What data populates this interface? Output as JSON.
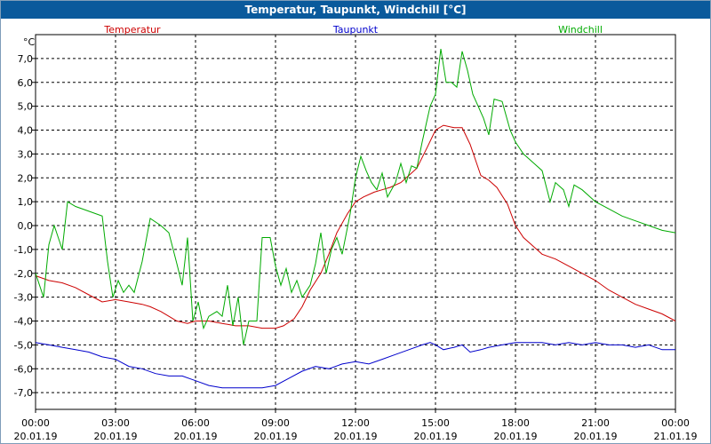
{
  "chart_data": {
    "type": "line",
    "title": "Temperatur, Taupunkt, Windchill [°C]",
    "ylabel": "°C",
    "xlabel": "",
    "grid": true,
    "legend_placement": "top",
    "ylim": [
      -7.7,
      8.0
    ],
    "xlim": [
      0,
      24
    ],
    "yticks": [
      7,
      6,
      5,
      4,
      3,
      2,
      1,
      0,
      -1,
      -2,
      -3,
      -4,
      -5,
      -6,
      -7
    ],
    "ytick_labels": [
      "7,0",
      "6,0",
      "5,0",
      "4,0",
      "3,0",
      "2,0",
      "1,0",
      "0,0",
      "-1,0",
      "-2,0",
      "-3,0",
      "-4,0",
      "-5,0",
      "-6,0",
      "-7,0"
    ],
    "xticks": [
      0,
      3,
      6,
      9,
      12,
      15,
      18,
      21,
      24
    ],
    "xtick_labels": [
      {
        "time": "00:00",
        "date": "20.01.19"
      },
      {
        "time": "03:00",
        "date": "20.01.19"
      },
      {
        "time": "06:00",
        "date": "20.01.19"
      },
      {
        "time": "09:00",
        "date": "20.01.19"
      },
      {
        "time": "12:00",
        "date": "20.01.19"
      },
      {
        "time": "15:00",
        "date": "20.01.19"
      },
      {
        "time": "18:00",
        "date": "20.01.19"
      },
      {
        "time": "21:00",
        "date": "20.01.19"
      },
      {
        "time": "00:00",
        "date": "21.01.19"
      }
    ],
    "series": [
      {
        "name": "Temperatur",
        "color": "#cc0000",
        "points": [
          [
            0,
            -2.1
          ],
          [
            0.5,
            -2.3
          ],
          [
            1,
            -2.4
          ],
          [
            1.5,
            -2.6
          ],
          [
            2,
            -2.9
          ],
          [
            2.5,
            -3.2
          ],
          [
            3,
            -3.1
          ],
          [
            3.5,
            -3.2
          ],
          [
            4,
            -3.3
          ],
          [
            4.3,
            -3.4
          ],
          [
            4.7,
            -3.6
          ],
          [
            5,
            -3.8
          ],
          [
            5.3,
            -4.0
          ],
          [
            5.7,
            -4.1
          ],
          [
            6,
            -4.0
          ],
          [
            6.5,
            -4.0
          ],
          [
            7,
            -4.1
          ],
          [
            7.5,
            -4.2
          ],
          [
            8,
            -4.2
          ],
          [
            8.5,
            -4.3
          ],
          [
            9,
            -4.3
          ],
          [
            9.3,
            -4.2
          ],
          [
            9.7,
            -3.9
          ],
          [
            10,
            -3.4
          ],
          [
            10.3,
            -2.7
          ],
          [
            10.7,
            -2.0
          ],
          [
            11,
            -1.2
          ],
          [
            11.3,
            -0.3
          ],
          [
            11.7,
            0.5
          ],
          [
            12,
            1.0
          ],
          [
            12.3,
            1.2
          ],
          [
            12.7,
            1.4
          ],
          [
            13,
            1.5
          ],
          [
            13.3,
            1.6
          ],
          [
            13.7,
            1.8
          ],
          [
            14,
            2.1
          ],
          [
            14.3,
            2.4
          ],
          [
            14.7,
            3.3
          ],
          [
            15,
            4.0
          ],
          [
            15.3,
            4.2
          ],
          [
            15.7,
            4.1
          ],
          [
            16,
            4.1
          ],
          [
            16.3,
            3.4
          ],
          [
            16.7,
            2.1
          ],
          [
            17,
            1.9
          ],
          [
            17.3,
            1.6
          ],
          [
            17.7,
            0.9
          ],
          [
            18,
            0.0
          ],
          [
            18.3,
            -0.5
          ],
          [
            18.7,
            -0.9
          ],
          [
            19,
            -1.2
          ],
          [
            19.5,
            -1.4
          ],
          [
            20,
            -1.7
          ],
          [
            20.5,
            -2.0
          ],
          [
            21,
            -2.3
          ],
          [
            21.5,
            -2.7
          ],
          [
            22,
            -3.0
          ],
          [
            22.5,
            -3.3
          ],
          [
            23,
            -3.5
          ],
          [
            23.5,
            -3.7
          ],
          [
            24,
            -4.0
          ]
        ]
      },
      {
        "name": "Taupunkt",
        "color": "#0000cc",
        "points": [
          [
            0,
            -4.9
          ],
          [
            0.5,
            -5.0
          ],
          [
            1,
            -5.1
          ],
          [
            1.5,
            -5.2
          ],
          [
            2,
            -5.3
          ],
          [
            2.5,
            -5.5
          ],
          [
            3,
            -5.6
          ],
          [
            3.5,
            -5.9
          ],
          [
            4,
            -6.0
          ],
          [
            4.5,
            -6.2
          ],
          [
            5,
            -6.3
          ],
          [
            5.5,
            -6.3
          ],
          [
            6,
            -6.5
          ],
          [
            6.5,
            -6.7
          ],
          [
            7,
            -6.8
          ],
          [
            7.5,
            -6.8
          ],
          [
            8,
            -6.8
          ],
          [
            8.5,
            -6.8
          ],
          [
            9,
            -6.7
          ],
          [
            9.5,
            -6.4
          ],
          [
            10,
            -6.1
          ],
          [
            10.5,
            -5.9
          ],
          [
            11,
            -6.0
          ],
          [
            11.5,
            -5.8
          ],
          [
            12,
            -5.7
          ],
          [
            12.5,
            -5.8
          ],
          [
            13,
            -5.6
          ],
          [
            13.5,
            -5.4
          ],
          [
            14,
            -5.2
          ],
          [
            14.5,
            -5.0
          ],
          [
            14.8,
            -4.9
          ],
          [
            15,
            -5.0
          ],
          [
            15.3,
            -5.2
          ],
          [
            15.7,
            -5.1
          ],
          [
            16,
            -5.0
          ],
          [
            16.3,
            -5.3
          ],
          [
            16.7,
            -5.2
          ],
          [
            17,
            -5.1
          ],
          [
            17.5,
            -5.0
          ],
          [
            18,
            -4.9
          ],
          [
            18.5,
            -4.9
          ],
          [
            19,
            -4.9
          ],
          [
            19.5,
            -5.0
          ],
          [
            20,
            -4.9
          ],
          [
            20.5,
            -5.0
          ],
          [
            21,
            -4.9
          ],
          [
            21.5,
            -5.0
          ],
          [
            22,
            -5.0
          ],
          [
            22.5,
            -5.1
          ],
          [
            23,
            -5.0
          ],
          [
            23.5,
            -5.2
          ],
          [
            24,
            -5.2
          ]
        ]
      },
      {
        "name": "Windchill",
        "color": "#00aa00",
        "points": [
          [
            0,
            -2.0
          ],
          [
            0.3,
            -3.0
          ],
          [
            0.5,
            -0.8
          ],
          [
            0.7,
            0.0
          ],
          [
            1,
            -1.0
          ],
          [
            1.2,
            1.0
          ],
          [
            1.5,
            0.8
          ],
          [
            2,
            0.6
          ],
          [
            2.5,
            0.4
          ],
          [
            2.7,
            -1.5
          ],
          [
            2.9,
            -3.0
          ],
          [
            3.1,
            -2.3
          ],
          [
            3.3,
            -2.8
          ],
          [
            3.5,
            -2.5
          ],
          [
            3.7,
            -2.8
          ],
          [
            4,
            -1.5
          ],
          [
            4.3,
            0.3
          ],
          [
            4.7,
            0.0
          ],
          [
            5,
            -0.3
          ],
          [
            5.3,
            -1.6
          ],
          [
            5.5,
            -2.5
          ],
          [
            5.7,
            -0.5
          ],
          [
            5.9,
            -4.0
          ],
          [
            6.1,
            -3.2
          ],
          [
            6.3,
            -4.3
          ],
          [
            6.5,
            -3.8
          ],
          [
            6.8,
            -3.6
          ],
          [
            7.0,
            -3.8
          ],
          [
            7.2,
            -2.5
          ],
          [
            7.4,
            -4.2
          ],
          [
            7.6,
            -3.0
          ],
          [
            7.8,
            -5.0
          ],
          [
            8.0,
            -4.0
          ],
          [
            8.3,
            -4.0
          ],
          [
            8.5,
            -0.5
          ],
          [
            8.8,
            -0.5
          ],
          [
            9.0,
            -1.7
          ],
          [
            9.2,
            -2.5
          ],
          [
            9.4,
            -1.8
          ],
          [
            9.6,
            -2.8
          ],
          [
            9.8,
            -2.3
          ],
          [
            10.0,
            -3.0
          ],
          [
            10.3,
            -2.5
          ],
          [
            10.5,
            -1.6
          ],
          [
            10.7,
            -0.3
          ],
          [
            10.9,
            -2.0
          ],
          [
            11.1,
            -1.0
          ],
          [
            11.3,
            -0.5
          ],
          [
            11.5,
            -1.2
          ],
          [
            11.8,
            0.5
          ],
          [
            12.0,
            2.0
          ],
          [
            12.2,
            2.9
          ],
          [
            12.4,
            2.3
          ],
          [
            12.6,
            1.8
          ],
          [
            12.8,
            1.5
          ],
          [
            13.0,
            2.2
          ],
          [
            13.2,
            1.2
          ],
          [
            13.5,
            1.8
          ],
          [
            13.7,
            2.6
          ],
          [
            13.9,
            1.8
          ],
          [
            14.1,
            2.5
          ],
          [
            14.3,
            2.4
          ],
          [
            14.5,
            3.5
          ],
          [
            14.8,
            5.0
          ],
          [
            15.0,
            5.5
          ],
          [
            15.2,
            7.4
          ],
          [
            15.4,
            6.0
          ],
          [
            15.6,
            6.0
          ],
          [
            15.8,
            5.8
          ],
          [
            16.0,
            7.3
          ],
          [
            16.2,
            6.5
          ],
          [
            16.4,
            5.5
          ],
          [
            16.6,
            5.0
          ],
          [
            16.8,
            4.5
          ],
          [
            17.0,
            3.8
          ],
          [
            17.2,
            5.3
          ],
          [
            17.5,
            5.2
          ],
          [
            17.8,
            4.0
          ],
          [
            18.0,
            3.5
          ],
          [
            18.3,
            3.0
          ],
          [
            18.7,
            2.6
          ],
          [
            19.0,
            2.3
          ],
          [
            19.3,
            1.0
          ],
          [
            19.5,
            1.8
          ],
          [
            19.8,
            1.5
          ],
          [
            20.0,
            0.8
          ],
          [
            20.2,
            1.7
          ],
          [
            20.5,
            1.5
          ],
          [
            21,
            1.0
          ],
          [
            21.5,
            0.7
          ],
          [
            22,
            0.4
          ],
          [
            22.5,
            0.2
          ],
          [
            23,
            0.0
          ],
          [
            23.5,
            -0.2
          ],
          [
            24,
            -0.3
          ]
        ]
      }
    ]
  }
}
